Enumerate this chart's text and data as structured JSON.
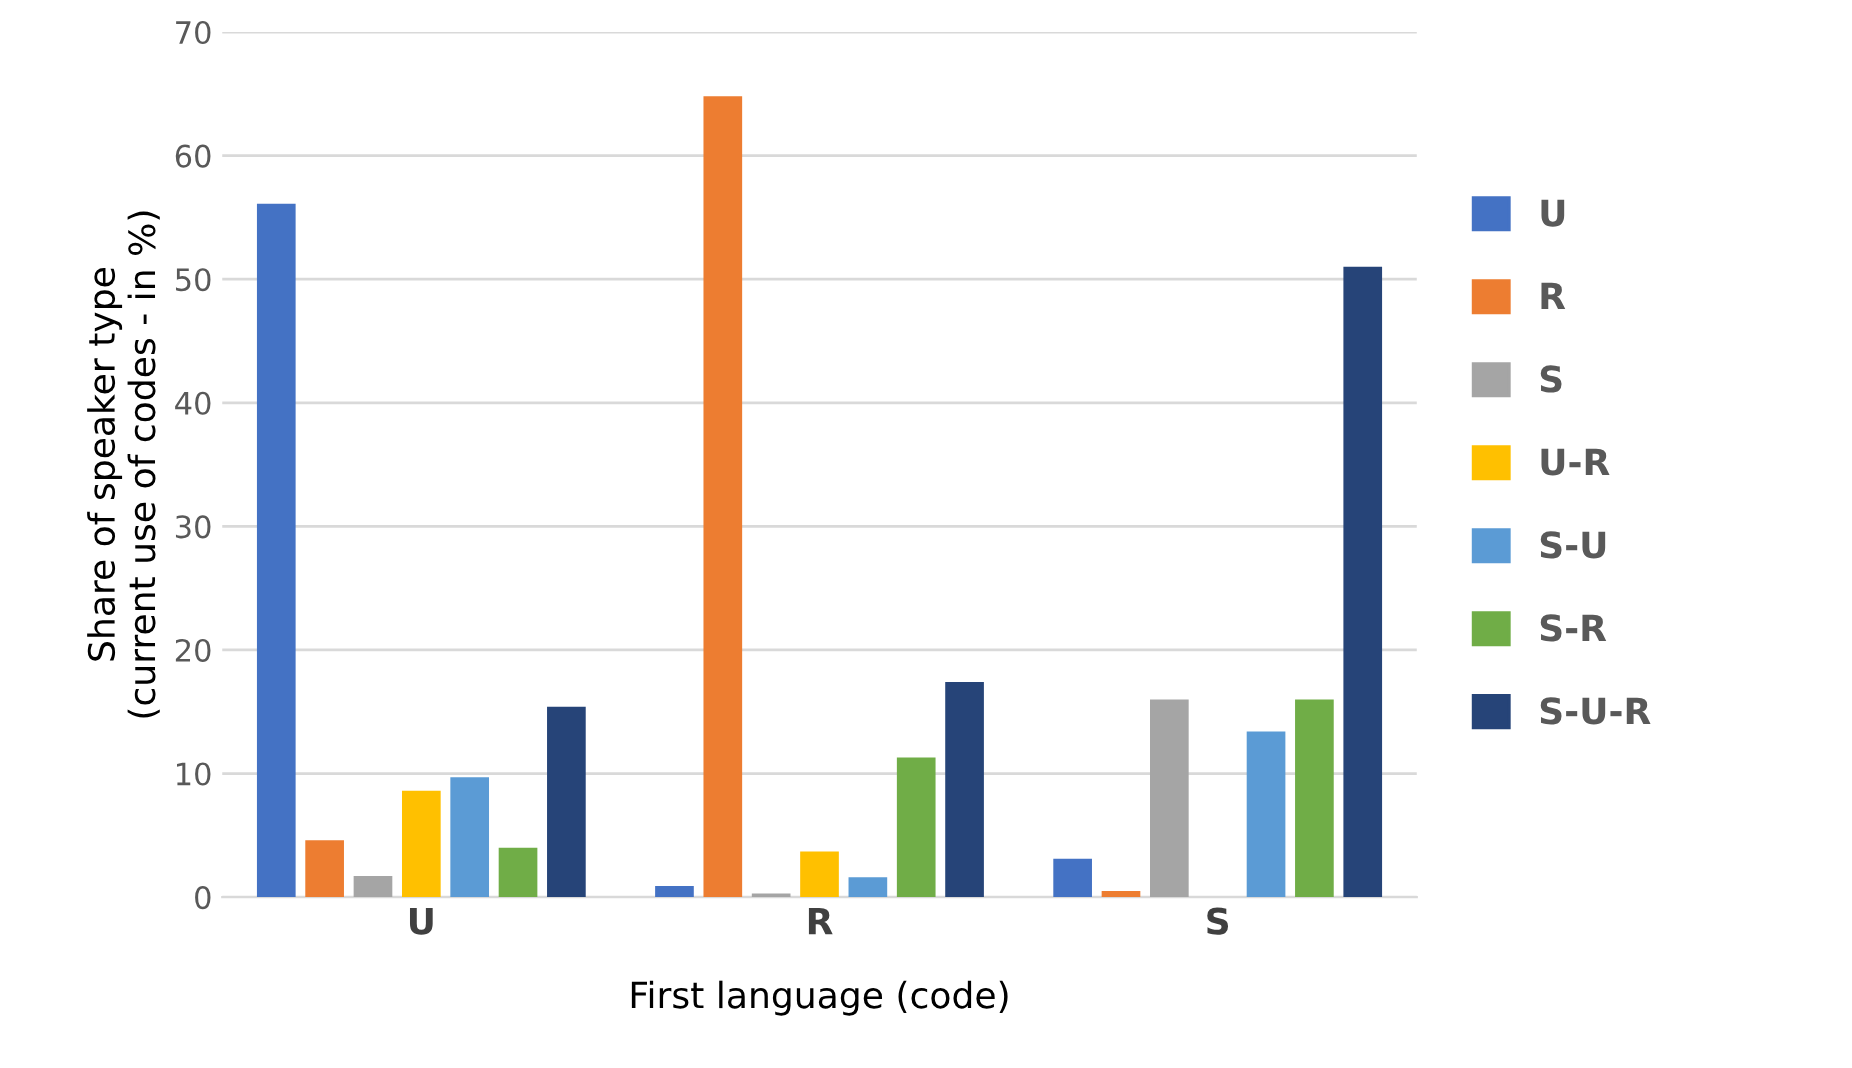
{
  "chart_data": {
    "type": "bar",
    "xlabel": "First language (code)",
    "ylabel": "Share of speaker type\n(current use of codes - in %)",
    "categories": [
      "U",
      "R",
      "S"
    ],
    "series": [
      {
        "name": "U",
        "color": "#4472c4",
        "values": [
          56.1,
          0.9,
          3.1
        ]
      },
      {
        "name": "R",
        "color": "#ed7d31",
        "values": [
          4.6,
          64.8,
          0.5
        ]
      },
      {
        "name": "S",
        "color": "#a5a5a5",
        "values": [
          1.7,
          0.3,
          16.0
        ]
      },
      {
        "name": "U-R",
        "color": "#ffc000",
        "values": [
          8.6,
          3.7,
          0
        ]
      },
      {
        "name": "S-U",
        "color": "#5b9bd5",
        "values": [
          9.7,
          1.6,
          13.4
        ]
      },
      {
        "name": "S-R",
        "color": "#70ad47",
        "values": [
          4.0,
          11.3,
          16.0
        ]
      },
      {
        "name": "S-U-R",
        "color": "#264478",
        "values": [
          15.4,
          17.4,
          51.0
        ]
      }
    ],
    "ylim": [
      0,
      70
    ],
    "yticks": [
      0,
      10,
      20,
      30,
      40,
      50,
      60,
      70
    ],
    "grid": "y",
    "legend": "right"
  }
}
